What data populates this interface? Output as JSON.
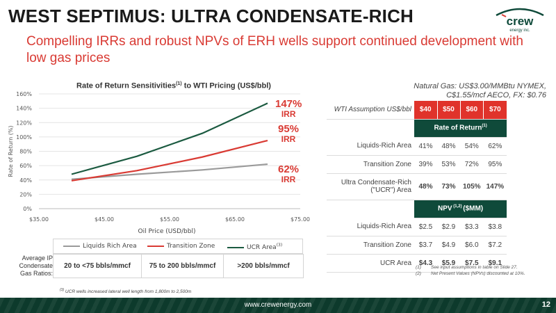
{
  "header": {
    "title": "WEST SEPTIMUS: ULTRA CONDENSATE-RICH",
    "subtitle": "Compelling IRRs and robust NPVs of ERH wells support continued development with low gas prices",
    "logo_text": "crew",
    "logo_sub": "energy inc."
  },
  "colors": {
    "accent_red": "#e0332b",
    "dark_green": "#0f4a3a",
    "ucr_line": "#1b5a40",
    "transition_line": "#d93a33",
    "liquids_line": "#9a9a9a"
  },
  "chart_title": "Rate of Return Sensitivities",
  "chart_title_sup": "(1)",
  "chart_title_suffix": " to WTI Pricing (US$/bbl)",
  "chart_data": {
    "type": "line",
    "x": [
      40,
      50,
      60,
      70
    ],
    "xlim": [
      35,
      75
    ],
    "xticks": [
      "$35.00",
      "$45.00",
      "$55.00",
      "$65.00",
      "$75.00"
    ],
    "xtick_values": [
      35,
      45,
      55,
      65,
      75
    ],
    "ylim": [
      0,
      160
    ],
    "yticks": [
      "0%",
      "20%",
      "40%",
      "60%",
      "80%",
      "100%",
      "120%",
      "140%",
      "160%"
    ],
    "ytick_values": [
      0,
      20,
      40,
      60,
      80,
      100,
      120,
      140,
      160
    ],
    "xlabel": "Oil Price (USD/bbl)",
    "ylabel": "Rate of Return (%)",
    "grid": "horizontal",
    "series": [
      {
        "name": "Liquids Rich Area",
        "values": [
          41,
          48,
          54,
          62
        ],
        "color": "#9a9a9a"
      },
      {
        "name": "Transition Zone",
        "values": [
          39,
          53,
          72,
          95
        ],
        "color": "#d93a33"
      },
      {
        "name": "UCR Area",
        "values": [
          48,
          73,
          105,
          147
        ],
        "color": "#1b5a40"
      }
    ],
    "annotations": [
      {
        "value": "147%",
        "unit": "IRR",
        "color": "#d93a33"
      },
      {
        "value": "95%",
        "unit": "IRR",
        "color": "#d93a33"
      },
      {
        "value": "62%",
        "unit": "IRR",
        "color": "#d93a33"
      }
    ]
  },
  "legend": {
    "items": [
      "Liquids Rich Area",
      "Transition Zone",
      "UCR Area"
    ],
    "ucr_sup": "(3)"
  },
  "ratios": {
    "label": "Average IP Condensate Gas Ratios:",
    "cells": [
      "20 to <75 bbls/mmcf",
      "75 to 200 bbls/mmcf",
      ">200 bbls/mmcf"
    ]
  },
  "footnote_ucr_sup": "(3)",
  "footnote_ucr": " UCR wells increased lateral well length from 1,800m to 2,500m",
  "gas_note": "Natural Gas: US$3.00/MMBtu NYMEX, C$1.55/mcf AECO, FX: $0.76",
  "sensitivity": {
    "wti_label": "WTI Assumption US$/bbl",
    "prices": [
      "$40",
      "$50",
      "$60",
      "$70"
    ],
    "ror_header": "Rate of Return",
    "ror_sup": "(1)",
    "ror_rows": [
      {
        "label": "Liquids-Rich Area",
        "values": [
          "41%",
          "48%",
          "54%",
          "62%"
        ]
      },
      {
        "label": "Transition Zone",
        "values": [
          "39%",
          "53%",
          "72%",
          "95%"
        ]
      },
      {
        "label": "Ultra Condensate-Rich (\"UCR\") Area",
        "values": [
          "48%",
          "73%",
          "105%",
          "147%"
        ]
      }
    ],
    "npv_header": "NPV",
    "npv_sup": " (1,2) ",
    "npv_suffix": "($MM)",
    "npv_rows": [
      {
        "label": "Liquids-Rich Area",
        "values": [
          "$2.5",
          "$2.9",
          "$3.3",
          "$3.8"
        ]
      },
      {
        "label": "Transition Zone",
        "values": [
          "$3.7",
          "$4.9",
          "$6.0",
          "$7.2"
        ]
      },
      {
        "label": "UCR Area",
        "values": [
          "$4.3",
          "$5.9",
          "$7.5",
          "$9.1"
        ]
      }
    ]
  },
  "notes": [
    {
      "num": "(1)",
      "text": "See input assumptions in table on Slide 27."
    },
    {
      "num": "(2)",
      "text": "Net Present Values (NPVs) discounted at 10%."
    }
  ],
  "footer": {
    "url": "www.crewenergy.com",
    "page": "12"
  }
}
